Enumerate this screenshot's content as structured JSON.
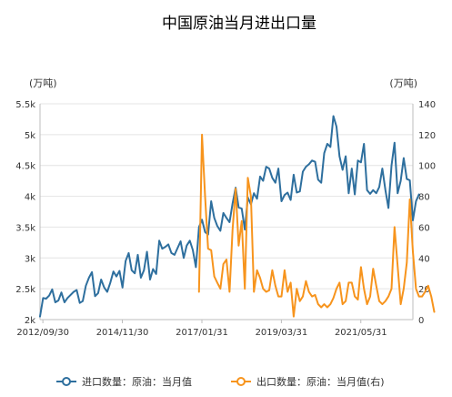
{
  "chart_data": {
    "type": "line",
    "title": "中国原油当月进出口量",
    "y_left_unit": "(万吨)",
    "y_right_unit": "(万吨)",
    "ylim_left": [
      2,
      5.5
    ],
    "ylim_right": [
      0,
      140
    ],
    "y_left_ticks": [
      "2k",
      "2.5k",
      "3k",
      "3.5k",
      "4k",
      "4.5k",
      "5k",
      "5.5k"
    ],
    "y_right_ticks": [
      "0",
      "20",
      "40",
      "60",
      "80",
      "100",
      "120",
      "140"
    ],
    "x_range": [
      "2012-09",
      "2022-11"
    ],
    "x_ticks": [
      "2012/09/30",
      "2014/11/30",
      "2017/01/31",
      "2019/03/31",
      "2021/05/31"
    ],
    "grid": "horizontal",
    "legend_position": "bottom",
    "series": [
      {
        "name": "进口数量：原油：当月值",
        "axis": "left",
        "color": "#2e6f9e",
        "start": "2012-09",
        "frequency": "monthly",
        "values": [
          2.05,
          2.35,
          2.34,
          2.39,
          2.49,
          2.28,
          2.31,
          2.44,
          2.28,
          2.35,
          2.4,
          2.45,
          2.48,
          2.27,
          2.3,
          2.55,
          2.68,
          2.77,
          2.38,
          2.43,
          2.65,
          2.52,
          2.45,
          2.6,
          2.78,
          2.7,
          2.79,
          2.52,
          2.95,
          3.08,
          2.8,
          2.75,
          3.05,
          2.68,
          2.8,
          3.1,
          2.65,
          2.82,
          2.74,
          3.28,
          3.15,
          3.18,
          3.22,
          3.08,
          3.05,
          3.16,
          3.27,
          3.0,
          3.2,
          3.28,
          3.13,
          2.85,
          3.5,
          3.62,
          3.42,
          3.38,
          3.92,
          3.65,
          3.52,
          3.44,
          3.73,
          3.65,
          3.58,
          3.88,
          4.14,
          3.82,
          3.8,
          3.46,
          3.98,
          3.87,
          4.05,
          3.96,
          4.32,
          4.25,
          4.48,
          4.45,
          4.3,
          4.22,
          4.45,
          3.92,
          4.02,
          4.06,
          3.94,
          4.35,
          4.06,
          4.08,
          4.4,
          4.48,
          4.52,
          4.58,
          4.56,
          4.27,
          4.22,
          4.7,
          4.85,
          4.8,
          5.3,
          5.13,
          4.65,
          4.43,
          4.65,
          4.05,
          4.45,
          4.03,
          4.58,
          4.55,
          4.85,
          4.1,
          4.04,
          4.1,
          4.05,
          4.15,
          4.45,
          4.1,
          3.81,
          4.5,
          4.87,
          4.05,
          4.25,
          4.62,
          4.28,
          4.26,
          3.61,
          3.92,
          4.03
        ]
      },
      {
        "name": "出口数量：原油：当月值(右)",
        "axis": "right",
        "color": "#f7941d",
        "start": "2017-01",
        "frequency": "monthly",
        "values": [
          18,
          120,
          80,
          46,
          45,
          28,
          24,
          20,
          36,
          39,
          18,
          58,
          85,
          48,
          64,
          20,
          92,
          80,
          18,
          32,
          27,
          20,
          18,
          19,
          32,
          22,
          15,
          15,
          32,
          18,
          24,
          2,
          20,
          12,
          15,
          25,
          18,
          15,
          16,
          10,
          8,
          10,
          8,
          10,
          14,
          20,
          24,
          10,
          12,
          24,
          24,
          15,
          13,
          34,
          20,
          10,
          15,
          33,
          22,
          12,
          10,
          12,
          15,
          20,
          60,
          35,
          10,
          20,
          37,
          78,
          44,
          20,
          15,
          15,
          18,
          22,
          15,
          5
        ]
      }
    ]
  }
}
